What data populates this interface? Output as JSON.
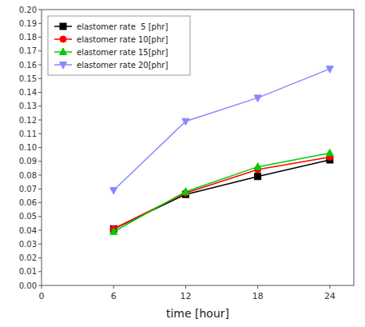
{
  "chart_data": {
    "type": "line",
    "xlabel": "time [hour]",
    "x": [
      6,
      12,
      18,
      24
    ],
    "series": [
      {
        "name": "elastomer rate  5 [phr]",
        "color": "#000000",
        "marker": "square",
        "values": [
          0.041,
          0.066,
          0.079,
          0.091
        ]
      },
      {
        "name": "elastomer rate 10[phr]",
        "color": "#ff0000",
        "marker": "circle",
        "values": [
          0.041,
          0.067,
          0.084,
          0.093
        ]
      },
      {
        "name": "elastomer rate 15[phr]",
        "color": "#00cc00",
        "marker": "triangle-up",
        "values": [
          0.039,
          0.068,
          0.086,
          0.096
        ]
      },
      {
        "name": "elastomer rate 20[phr]",
        "color": "#8888ff",
        "marker": "triangle-down",
        "values": [
          0.069,
          0.119,
          0.136,
          0.157
        ]
      }
    ],
    "xlim": [
      0,
      26
    ],
    "ylim": [
      0,
      0.2
    ],
    "xticks": [
      0,
      6,
      12,
      18,
      24
    ],
    "yticks": [
      {
        "value": 0,
        "label": "0.00"
      },
      0.01,
      0.02,
      0.03,
      0.04,
      0.05,
      0.06,
      0.07,
      0.08,
      0.09,
      {
        "value": 0.1,
        "label": "0.10"
      },
      0.11,
      0.12,
      0.13,
      0.14,
      0.15,
      0.16,
      0.17,
      0.18,
      0.19,
      {
        "value": 0.2,
        "label": "0.20"
      }
    ],
    "grid": false,
    "legend": "upper left"
  }
}
